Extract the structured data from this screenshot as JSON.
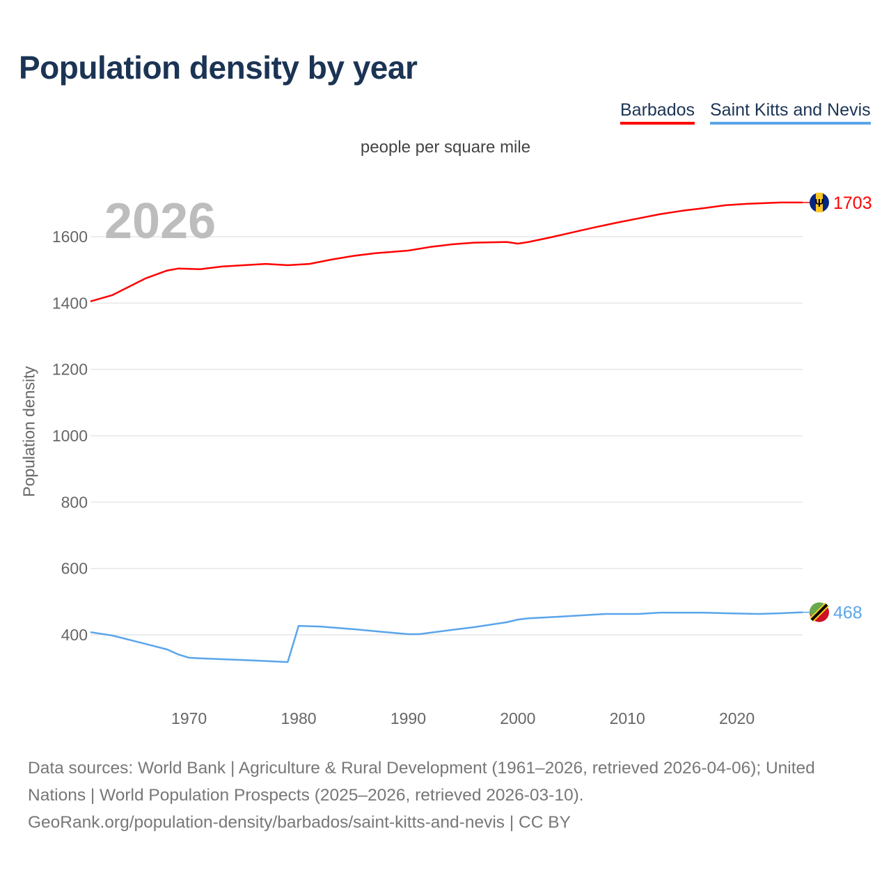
{
  "title": "Population density by year",
  "legend": [
    "Barbados",
    "Saint Kitts and Nevis"
  ],
  "footer": {
    "line1": "Data sources: World Bank | Agriculture & Rural Development (1961–2026, retrieved 2026-04-06); United Nations | World Population Prospects (2025–2026, retrieved 2026-03-10).",
    "line2": "GeoRank.org/population-density/barbados/saint-kitts-and-nevis | CC BY"
  },
  "chart_data": {
    "type": "line",
    "title": "Population density by year",
    "subtitle": "people per square mile",
    "ylabel": "Population density",
    "xlabel": "",
    "year_watermark": "2026",
    "xlim": [
      1961,
      2026
    ],
    "ylim": [
      290,
      1740
    ],
    "xticks": [
      1970,
      1980,
      1990,
      2000,
      2010,
      2020
    ],
    "yticks": [
      400,
      600,
      800,
      1000,
      1200,
      1400,
      1600
    ],
    "grid": true,
    "legend_position": "top-right",
    "series": [
      {
        "name": "Barbados",
        "color": "#ff0000",
        "end_label": "1703",
        "flag": "barbados-flag",
        "points": [
          [
            1961,
            1405
          ],
          [
            1963,
            1424
          ],
          [
            1966,
            1474
          ],
          [
            1968,
            1498
          ],
          [
            1969,
            1504
          ],
          [
            1971,
            1502
          ],
          [
            1973,
            1510
          ],
          [
            1975,
            1514
          ],
          [
            1977,
            1518
          ],
          [
            1979,
            1514
          ],
          [
            1981,
            1518
          ],
          [
            1983,
            1531
          ],
          [
            1985,
            1542
          ],
          [
            1987,
            1550
          ],
          [
            1990,
            1558
          ],
          [
            1992,
            1569
          ],
          [
            1994,
            1577
          ],
          [
            1996,
            1582
          ],
          [
            1999,
            1584
          ],
          [
            2000,
            1579
          ],
          [
            2001,
            1584
          ],
          [
            2003,
            1598
          ],
          [
            2005,
            1613
          ],
          [
            2007,
            1628
          ],
          [
            2009,
            1642
          ],
          [
            2011,
            1655
          ],
          [
            2013,
            1668
          ],
          [
            2015,
            1678
          ],
          [
            2017,
            1686
          ],
          [
            2019,
            1695
          ],
          [
            2021,
            1699
          ],
          [
            2024,
            1703
          ],
          [
            2026,
            1703
          ]
        ]
      },
      {
        "name": "Saint Kitts and Nevis",
        "color": "#5aa5ea",
        "end_label": "468",
        "flag": "saint-kitts-and-nevis-flag",
        "points": [
          [
            1961,
            408
          ],
          [
            1963,
            398
          ],
          [
            1966,
            373
          ],
          [
            1968,
            356
          ],
          [
            1969,
            341
          ],
          [
            1970,
            331
          ],
          [
            1971,
            329
          ],
          [
            1975,
            324
          ],
          [
            1979,
            318
          ],
          [
            1980,
            427
          ],
          [
            1982,
            425
          ],
          [
            1985,
            417
          ],
          [
            1988,
            408
          ],
          [
            1990,
            402
          ],
          [
            1991,
            402
          ],
          [
            1994,
            415
          ],
          [
            1996,
            423
          ],
          [
            1999,
            438
          ],
          [
            2000,
            446
          ],
          [
            2001,
            450
          ],
          [
            2004,
            455
          ],
          [
            2006,
            459
          ],
          [
            2008,
            463
          ],
          [
            2011,
            463
          ],
          [
            2013,
            467
          ],
          [
            2017,
            467
          ],
          [
            2019,
            465
          ],
          [
            2022,
            463
          ],
          [
            2024,
            465
          ],
          [
            2026,
            468
          ]
        ]
      }
    ]
  }
}
